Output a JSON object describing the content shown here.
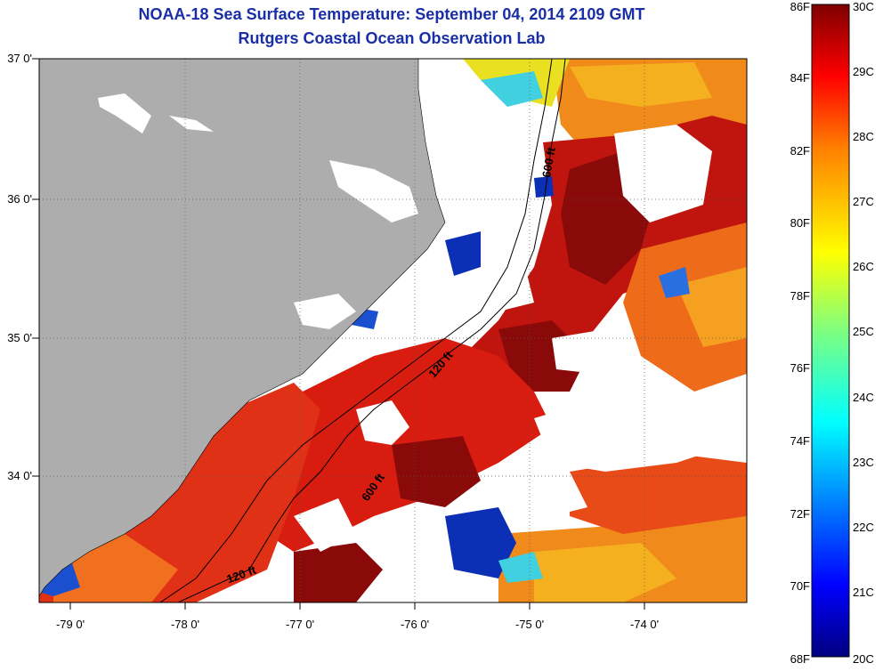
{
  "title": {
    "line1": "NOAA-18 Sea Surface Temperature:  September 04, 2014 2109 GMT",
    "line2": "Rutgers Coastal Ocean Observation Lab"
  },
  "map": {
    "lon_labels": [
      "-79 0'",
      "-78 0'",
      "-77 0'",
      "-76 0'",
      "-75 0'",
      "-74 0'"
    ],
    "lat_labels": [
      "37 0'",
      "36 0'",
      "35 0'",
      "34 0'"
    ],
    "depth_contours": [
      "600 ft",
      "120 ft",
      "600 ft",
      "120 ft"
    ],
    "colors": {
      "land": "#adadad",
      "cloud": "#ffffff",
      "warm": "#d81d10",
      "hot": "#8a0a0a",
      "cold": "#0b2fb5"
    }
  },
  "colorbar": {
    "fahrenheit_labels": [
      "86F",
      "84F",
      "82F",
      "80F",
      "78F",
      "76F",
      "74F",
      "72F",
      "70F",
      "68F"
    ],
    "celsius_labels": [
      "30C",
      "29C",
      "28C",
      "27C",
      "26C",
      "25C",
      "24C",
      "23C",
      "22C",
      "21C",
      "20C"
    ],
    "colors": [
      "#00007f",
      "#0000ff",
      "#007fff",
      "#00ffff",
      "#7fff7f",
      "#ffff00",
      "#ff7f00",
      "#ff0000",
      "#7f0000"
    ]
  }
}
